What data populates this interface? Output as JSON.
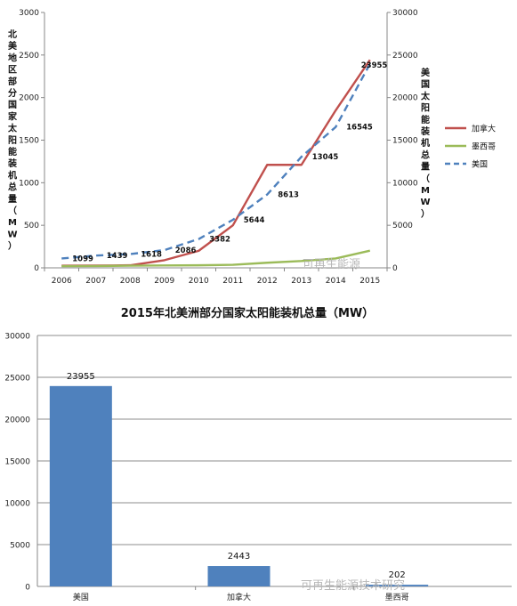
{
  "chart_data": [
    {
      "type": "line",
      "ylabel_left": "北美地区部分国家太阳能装机总量（MW）",
      "ylabel_right": "美国太阳能装机总量（MW）",
      "x": [
        "2006",
        "2007",
        "2008",
        "2009",
        "2010",
        "2011",
        "2012",
        "2013",
        "2014",
        "2015"
      ],
      "ylim_left": [
        0,
        3000
      ],
      "ylim_right": [
        0,
        30000
      ],
      "yticks_left": [
        "0",
        "500",
        "1000",
        "1500",
        "2000",
        "2500",
        "3000"
      ],
      "yticks_right": [
        "0",
        "5000",
        "10000",
        "15000",
        "20000",
        "25000",
        "30000"
      ],
      "legend_position": "right",
      "series": [
        {
          "name": "加拿大",
          "axis": "left",
          "color": "#c0504d",
          "style": "solid",
          "values": [
            25,
            27,
            30,
            90,
            200,
            500,
            1210,
            1210,
            1850,
            2443
          ]
        },
        {
          "name": "墨西哥",
          "axis": "left",
          "color": "#9bbb59",
          "style": "solid",
          "values": [
            20,
            22,
            25,
            28,
            30,
            36,
            60,
            80,
            110,
            202
          ]
        },
        {
          "name": "美国",
          "axis": "right",
          "color": "#4f81bd",
          "style": "dashed",
          "values": [
            1099,
            1439,
            1618,
            2086,
            3382,
            5644,
            8613,
            13045,
            16545,
            23955
          ],
          "labels": [
            "1099",
            "1439",
            "1618",
            "2086",
            "3382",
            "5644",
            "8613",
            "13045",
            "16545",
            "23955"
          ]
        }
      ],
      "watermark": "可再生能源"
    },
    {
      "type": "bar",
      "title": "2015年北美洲部分国家太阳能装机总量（MW）",
      "categories": [
        "美国",
        "加拿大",
        "墨西哥"
      ],
      "values": [
        23955,
        2443,
        202
      ],
      "labels": [
        "23955",
        "2443",
        "202"
      ],
      "ylim": [
        0,
        30000
      ],
      "yticks": [
        "0",
        "5000",
        "10000",
        "15000",
        "20000",
        "25000",
        "30000"
      ],
      "bar_color": "#4f81bd",
      "grid": true,
      "watermark": "可再生能源技术研究"
    }
  ]
}
